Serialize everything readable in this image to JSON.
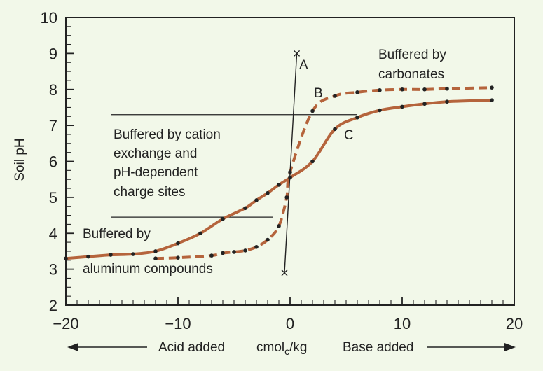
{
  "chart_data": {
    "type": "line",
    "ylabel": "Soil pH",
    "xlabel": {
      "left": "Acid added",
      "unit_main": "cmol",
      "unit_sub": "c",
      "unit_tail": "/kg",
      "right": "Base added"
    },
    "xlim": [
      -20,
      20
    ],
    "ylim": [
      2,
      10
    ],
    "x_ticks": [
      -20,
      -10,
      0,
      10,
      20
    ],
    "x_tick_labels": [
      "−20",
      "−10",
      "0",
      "10",
      "20"
    ],
    "y_ticks": [
      2,
      3,
      4,
      5,
      6,
      7,
      8,
      9,
      10
    ],
    "y_tick_labels": [
      "2",
      "3",
      "4",
      "5",
      "6",
      "7",
      "8",
      "9",
      "10"
    ],
    "grid": false,
    "colors": {
      "curve": "#b5643c",
      "background": "#f2f8e9",
      "ink": "#222222"
    },
    "series": [
      {
        "label": "C",
        "style": "solid",
        "points": [
          [
            -20,
            3.3
          ],
          [
            -18,
            3.35
          ],
          [
            -16,
            3.4
          ],
          [
            -14,
            3.42
          ],
          [
            -12,
            3.5
          ],
          [
            -10,
            3.72
          ],
          [
            -8,
            4.0
          ],
          [
            -6,
            4.4
          ],
          [
            -4,
            4.7
          ],
          [
            -3,
            4.92
          ],
          [
            -2,
            5.12
          ],
          [
            -1,
            5.35
          ],
          [
            0,
            5.55
          ],
          [
            2,
            6.0
          ],
          [
            4,
            6.9
          ],
          [
            6,
            7.22
          ],
          [
            8,
            7.42
          ],
          [
            10,
            7.52
          ],
          [
            12,
            7.6
          ],
          [
            14,
            7.66
          ],
          [
            18,
            7.7
          ]
        ]
      },
      {
        "label": "B",
        "style": "dashed",
        "points": [
          [
            -12,
            3.3
          ],
          [
            -10,
            3.32
          ],
          [
            -7,
            3.38
          ],
          [
            -6,
            3.45
          ],
          [
            -5,
            3.48
          ],
          [
            -4,
            3.52
          ],
          [
            -3,
            3.62
          ],
          [
            -2,
            3.82
          ],
          [
            -1,
            4.2
          ],
          [
            -0.3,
            5.0
          ],
          [
            0,
            5.7
          ],
          [
            2,
            7.4
          ],
          [
            4,
            7.82
          ],
          [
            6,
            7.92
          ],
          [
            8,
            7.98
          ],
          [
            10,
            8.0
          ],
          [
            12,
            8.0
          ],
          [
            14,
            8.02
          ],
          [
            18,
            8.05
          ]
        ]
      },
      {
        "label": "A",
        "style": "solid-thin",
        "points": [
          [
            -0.5,
            2.9
          ],
          [
            0.6,
            9.0
          ]
        ]
      }
    ],
    "annotations": {
      "carbonates": [
        "Buffered by",
        "carbonates"
      ],
      "cation": [
        "Buffered by cation",
        "exchange and",
        "pH-dependent",
        "charge sites"
      ],
      "aluminum": [
        "Buffered by",
        "aluminum compounds"
      ],
      "label_a": "A",
      "label_b": "B",
      "label_c": "C"
    },
    "reference_lines": [
      {
        "y": 7.3,
        "x_from": -16,
        "x_to": 6
      },
      {
        "y": 4.45,
        "x_from": -16,
        "x_to": -1.5
      }
    ]
  }
}
